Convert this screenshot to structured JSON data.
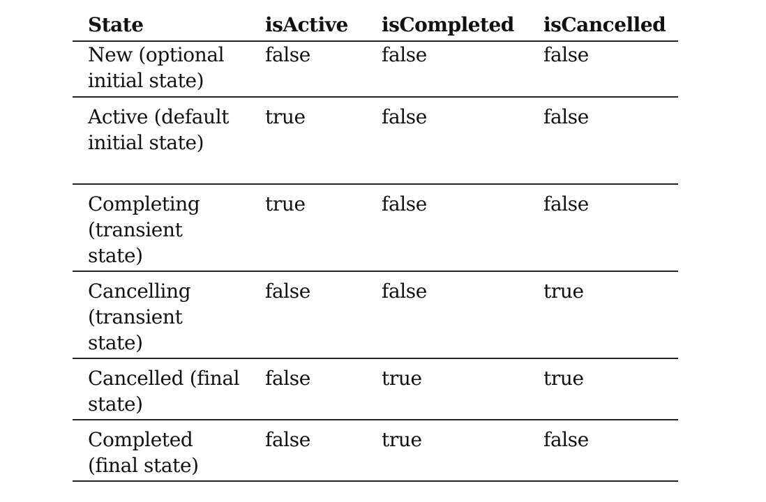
{
  "table": {
    "headers": [
      "State",
      "isActive",
      "isCompleted",
      "isCancelled"
    ],
    "rows": [
      {
        "state": "New (optional initial state)",
        "isActive": "false",
        "isCompleted": "false",
        "isCancelled": "false"
      },
      {
        "state": "Active (default initial state)",
        "isActive": "true",
        "isCompleted": "false",
        "isCancelled": "false"
      },
      {
        "state": "Completing (transient state)",
        "isActive": "true",
        "isCompleted": "false",
        "isCancelled": "false"
      },
      {
        "state": "Cancelling (transient state)",
        "isActive": "false",
        "isCompleted": "false",
        "isCancelled": "true"
      },
      {
        "state": "Cancelled (final state)",
        "isActive": "false",
        "isCompleted": "true",
        "isCancelled": "true"
      },
      {
        "state": "Completed (final state)",
        "isActive": "false",
        "isCompleted": "true",
        "isCancelled": "false"
      }
    ]
  }
}
